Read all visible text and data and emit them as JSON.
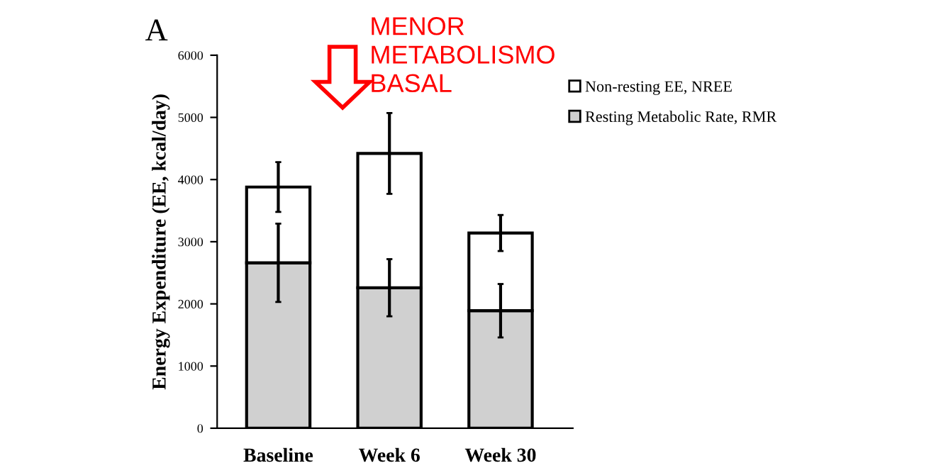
{
  "chart_data": {
    "type": "bar",
    "stacked": true,
    "ylabel": "Energy Expenditure (EE, kcal/day)",
    "categories": [
      "Baseline",
      "Week 6",
      "Week 30"
    ],
    "series": [
      {
        "name": "Resting Metabolic Rate, RMR",
        "color": "#d0d0d0",
        "values": [
          2660,
          2260,
          1890
        ],
        "errors": [
          630,
          460,
          430
        ]
      },
      {
        "name": "Non-resting EE, NREE",
        "color": "#ffffff",
        "values": [
          1220,
          2160,
          1250
        ],
        "errors": [
          400,
          650,
          290
        ]
      }
    ],
    "ylim": [
      0,
      6000
    ],
    "yticks": [
      0,
      1000,
      2000,
      3000,
      4000,
      5000,
      6000
    ],
    "grid": false,
    "legend": "top right",
    "annotations": [
      "A",
      "MENOR\nMETABOLISMO\nBASAL"
    ]
  }
}
